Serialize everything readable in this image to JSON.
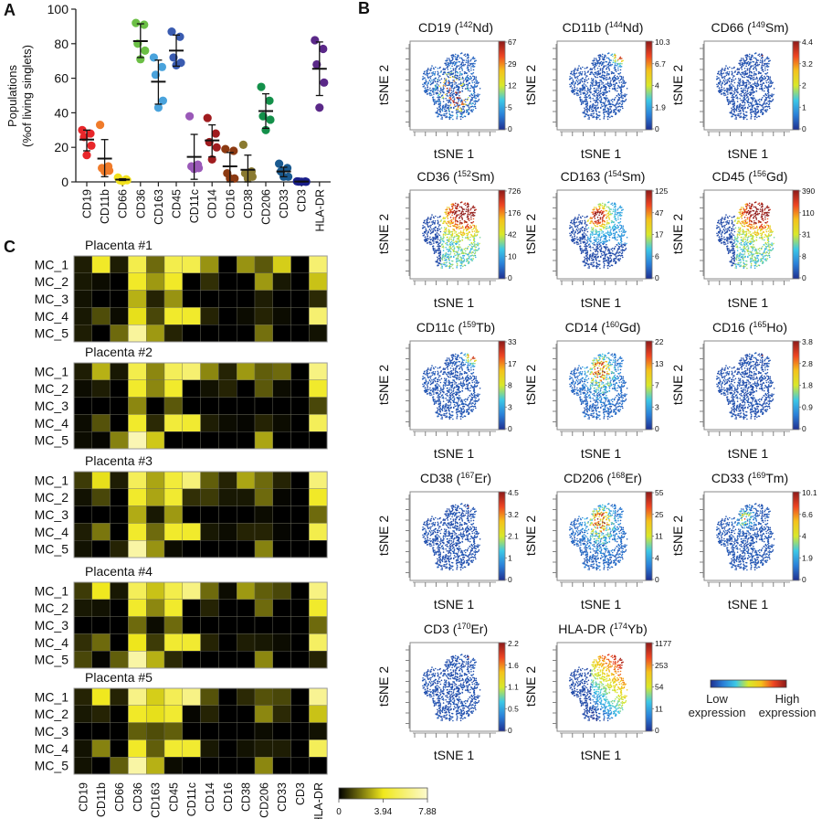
{
  "panel_labels": {
    "a": "A",
    "b": "B",
    "c": "C"
  },
  "chart_data": [
    {
      "panel": "A",
      "type": "scatter",
      "ylabel": [
        "Populations",
        "(%of living singlets)"
      ],
      "ylim": [
        0,
        100
      ],
      "yticks": [
        "0",
        "20",
        "40",
        "60",
        "80",
        "100"
      ],
      "categories": [
        "CD19",
        "CD11b",
        "CD66",
        "CD36",
        "CD163",
        "CD45",
        "CD11c",
        "CD14",
        "CD16",
        "CD38",
        "CD206",
        "CD33",
        "CD3",
        "HLA-DR"
      ],
      "series": [
        {
          "category": "CD19",
          "color": "#e8262a",
          "values": [
            30,
            28,
            26,
            21,
            15.5
          ],
          "mean": 24.5,
          "sd": [
            18,
            30
          ]
        },
        {
          "category": "CD11b",
          "color": "#f07b2a",
          "values": [
            33,
            9,
            8,
            6.5,
            6
          ],
          "mean": 13.5,
          "sd": [
            3,
            24.5
          ]
        },
        {
          "category": "CD66",
          "color": "#f2e11c",
          "values": [
            2.5,
            1.5,
            1,
            1,
            0.5
          ],
          "mean": 1.3,
          "sd": [
            0.8,
            1.8
          ]
        },
        {
          "category": "CD36",
          "color": "#6bbf45",
          "values": [
            92,
            91,
            80,
            76,
            71
          ],
          "mean": 81.5,
          "sd": [
            72,
            91.5
          ]
        },
        {
          "category": "CD163",
          "color": "#4aa3dc",
          "values": [
            72,
            66.5,
            62,
            47,
            43
          ],
          "mean": 58,
          "sd": [
            45,
            70.5
          ]
        },
        {
          "category": "CD45",
          "color": "#3a5bb0",
          "values": [
            87,
            84,
            72,
            69,
            67.5
          ],
          "mean": 76,
          "sd": [
            67,
            85
          ]
        },
        {
          "category": "CD11c",
          "color": "#9a59b8",
          "values": [
            38,
            10,
            9,
            8,
            7.5
          ],
          "mean": 14.5,
          "sd": [
            1.5,
            27.5
          ]
        },
        {
          "category": "CD14",
          "color": "#a01c1f",
          "values": [
            37,
            28,
            23,
            20,
            13
          ],
          "mean": 24,
          "sd": [
            14.5,
            33
          ]
        },
        {
          "category": "CD16",
          "color": "#8c3a12",
          "values": [
            19,
            18,
            5,
            2,
            2
          ],
          "mean": 9,
          "sd": [
            0,
            17
          ]
        },
        {
          "category": "CD38",
          "color": "#8a7a30",
          "values": [
            21.5,
            6,
            5,
            3,
            2
          ],
          "mean": 7,
          "sd": [
            0,
            15.5
          ]
        },
        {
          "category": "CD206",
          "color": "#13904a",
          "values": [
            55,
            47,
            38,
            36,
            30
          ],
          "mean": 41,
          "sd": [
            31,
            51
          ]
        },
        {
          "category": "CD33",
          "color": "#1a5a90",
          "values": [
            10.5,
            8,
            6,
            3,
            3
          ],
          "mean": 6,
          "sd": [
            3,
            8.5
          ]
        },
        {
          "category": "CD3",
          "color": "#1a1f8a",
          "values": [
            0.3,
            0.2,
            0.2,
            0.1,
            0.1
          ],
          "mean": 0.2,
          "sd": [
            0,
            0.4
          ]
        },
        {
          "category": "HLA-DR",
          "color": "#5a2888",
          "values": [
            82,
            77,
            68,
            57.5,
            43
          ],
          "mean": 65.5,
          "sd": [
            50,
            81
          ]
        }
      ]
    },
    {
      "panel": "B",
      "type": "scatter",
      "xlabel": "tSNE 1",
      "ylabel": "tSNE 2",
      "colormap": [
        "#1f2f8f",
        "#2a7fd8",
        "#3cc8e6",
        "#d8e82a",
        "#f5c21b",
        "#ee4422",
        "#8b1a1a"
      ],
      "plots": [
        {
          "marker": "CD19",
          "isotope": "142",
          "element": "Nd",
          "colorbar_ticks": [
            "0",
            "5",
            "12",
            "29",
            "67"
          ]
        },
        {
          "marker": "CD11b",
          "isotope": "144",
          "element": "Nd",
          "colorbar_ticks": [
            "0",
            "1.9",
            "4",
            "6.7",
            "10.3"
          ]
        },
        {
          "marker": "CD66",
          "isotope": "149",
          "element": "Sm",
          "colorbar_ticks": [
            "0",
            "1",
            "2",
            "3.2",
            "4.4"
          ]
        },
        {
          "marker": "CD36",
          "isotope": "152",
          "element": "Sm",
          "colorbar_ticks": [
            "0",
            "10",
            "42",
            "176",
            "726"
          ]
        },
        {
          "marker": "CD163",
          "isotope": "154",
          "element": "Sm",
          "colorbar_ticks": [
            "0",
            "6",
            "17",
            "47",
            "125"
          ]
        },
        {
          "marker": "CD45",
          "isotope": "156",
          "element": "Gd",
          "colorbar_ticks": [
            "0",
            "8",
            "31",
            "110",
            "390"
          ]
        },
        {
          "marker": "CD11c",
          "isotope": "159",
          "element": "Tb",
          "colorbar_ticks": [
            "0",
            "3",
            "8",
            "17",
            "33"
          ]
        },
        {
          "marker": "CD14",
          "isotope": "160",
          "element": "Gd",
          "colorbar_ticks": [
            "0",
            "3",
            "7",
            "13",
            "22"
          ]
        },
        {
          "marker": "CD16",
          "isotope": "165",
          "element": "Ho",
          "colorbar_ticks": [
            "0",
            "0.9",
            "1.8",
            "2.8",
            "3.8"
          ]
        },
        {
          "marker": "CD38",
          "isotope": "167",
          "element": "Er",
          "colorbar_ticks": [
            "0",
            "1",
            "2.1",
            "3.2",
            "4.5"
          ]
        },
        {
          "marker": "CD206",
          "isotope": "168",
          "element": "Er",
          "colorbar_ticks": [
            "0",
            "4",
            "11",
            "25",
            "55"
          ]
        },
        {
          "marker": "CD33",
          "isotope": "169",
          "element": "Tm",
          "colorbar_ticks": [
            "0",
            "1.9",
            "4",
            "6.6",
            "10.1"
          ]
        },
        {
          "marker": "CD3",
          "isotope": "170",
          "element": "Er",
          "colorbar_ticks": [
            "0",
            "0.5",
            "1.1",
            "1.6",
            "2.2"
          ]
        },
        {
          "marker": "HLA-DR",
          "isotope": "174",
          "element": "Yb",
          "colorbar_ticks": [
            "0",
            "11",
            "54",
            "253",
            "1177"
          ]
        }
      ],
      "legend": {
        "low": "Low expression",
        "high": "High expression"
      }
    },
    {
      "panel": "C",
      "type": "heatmap",
      "columns": [
        "CD19",
        "CD11b",
        "CD66",
        "CD36",
        "CD163",
        "CD45",
        "CD11c",
        "CD14",
        "CD16",
        "CD38",
        "CD206",
        "CD33",
        "CD3",
        "HLA-DR"
      ],
      "rows": [
        "MC_1",
        "MC_2",
        "MC_3",
        "MC_4",
        "MC_5"
      ],
      "colors": [
        "#000000",
        "#f0e81c",
        "#fcf9cd"
      ],
      "colorbar": {
        "min": 0,
        "mid": 3.94,
        "max": 7.88,
        "ticks": [
          "0",
          "3.94",
          "7.88"
        ]
      },
      "blocks": [
        {
          "title": "Placenta #1",
          "values": [
            [
              0.5,
              4.2,
              0.5,
              5,
              1.8,
              5,
              5,
              2.5,
              0,
              2.5,
              1.5,
              3.5,
              0,
              5.8
            ],
            [
              0.4,
              0.2,
              0,
              4.2,
              2.6,
              4.2,
              0,
              0.8,
              0,
              0,
              2.6,
              0.4,
              0,
              3.3
            ],
            [
              0.3,
              0,
              0,
              3.0,
              0.6,
              2.5,
              0,
              0,
              0,
              0,
              0.5,
              0,
              0,
              0.7
            ],
            [
              0.4,
              1.3,
              0.2,
              3.8,
              1.2,
              4.3,
              4.3,
              0.6,
              0,
              0.2,
              0.6,
              0.2,
              0,
              5.8
            ],
            [
              0.5,
              0,
              1.8,
              6.8,
              2.6,
              0.6,
              0,
              0,
              0,
              0,
              1.9,
              0,
              0,
              0.3
            ]
          ]
        },
        {
          "title": "Placenta #2",
          "values": [
            [
              0.5,
              3.0,
              0.4,
              5,
              2.3,
              5.3,
              5.8,
              2.3,
              0.6,
              2.6,
              1.6,
              1.8,
              0,
              6.2
            ],
            [
              0.2,
              0.5,
              0,
              4.3,
              2.3,
              4.3,
              0,
              0.3,
              0.6,
              0,
              1.5,
              0.2,
              0,
              4.3
            ],
            [
              0,
              0,
              0,
              2.3,
              0,
              1.5,
              0,
              0,
              0,
              0,
              0,
              0,
              0,
              1.2
            ],
            [
              0.2,
              1.4,
              0,
              4.3,
              0.7,
              4.6,
              4.4,
              0.5,
              0.2,
              0.1,
              0.6,
              0.2,
              0,
              5.3
            ],
            [
              0.2,
              0.1,
              2.2,
              7.3,
              3.4,
              0,
              0,
              0,
              0,
              0,
              2.8,
              0,
              0,
              0
            ]
          ]
        },
        {
          "title": "Placenta #3",
          "values": [
            [
              1.0,
              3.8,
              0.5,
              5.3,
              2.8,
              4.6,
              6,
              1.6,
              0.6,
              2.8,
              1.8,
              0.6,
              0,
              6
            ],
            [
              0.3,
              1.2,
              0,
              4.3,
              2.8,
              4.4,
              0.8,
              1.0,
              0.4,
              0.4,
              1.8,
              0.1,
              0,
              4.2
            ],
            [
              0,
              0,
              0,
              2.9,
              0.4,
              2.6,
              0,
              0,
              0,
              0,
              0.2,
              0,
              0,
              1.8
            ],
            [
              0.5,
              2.0,
              0,
              4.3,
              1.8,
              4.3,
              4.3,
              0.4,
              0.2,
              0.6,
              0.6,
              0.1,
              0,
              5
            ],
            [
              0.3,
              0,
              0.6,
              7.0,
              2.5,
              0.2,
              0,
              0,
              0,
              0,
              2.2,
              0,
              0,
              0
            ]
          ]
        },
        {
          "title": "Placenta #4",
          "values": [
            [
              1.0,
              4.0,
              0.4,
              5.3,
              3.3,
              5,
              6.2,
              1.8,
              0.2,
              2.6,
              1.6,
              1.2,
              0,
              6.2
            ],
            [
              0.4,
              0.3,
              0,
              4.3,
              2.3,
              4.3,
              0,
              0.6,
              0,
              0,
              1.8,
              0,
              0,
              4.3
            ],
            [
              0,
              0,
              0,
              1.8,
              0.2,
              1.8,
              0,
              0,
              0,
              0,
              0,
              0,
              0,
              1.8
            ],
            [
              0.8,
              1.8,
              0,
              3.9,
              1.0,
              4.4,
              4.4,
              0.6,
              0,
              0.5,
              0.4,
              0.2,
              0,
              5.5
            ],
            [
              1.2,
              0.1,
              1.6,
              7.0,
              3.0,
              0.7,
              0,
              0,
              0,
              0,
              2.3,
              0,
              0,
              0.6
            ]
          ]
        },
        {
          "title": "Placenta #5",
          "values": [
            [
              0.6,
              4.0,
              0.6,
              6.3,
              3.5,
              5.2,
              6.3,
              1.4,
              0,
              0.7,
              1.4,
              1.2,
              0,
              6.6
            ],
            [
              0.4,
              0.6,
              0,
              4.2,
              3.8,
              4.4,
              0.1,
              0.6,
              0,
              0,
              2.3,
              0.7,
              0,
              3.3
            ],
            [
              0,
              0,
              0,
              1.6,
              1.3,
              1.6,
              0,
              0,
              0,
              0,
              0.2,
              0,
              0,
              0.3
            ],
            [
              0.3,
              2.2,
              0,
              4.2,
              1.6,
              4.4,
              4.4,
              0.4,
              0,
              0.3,
              0.5,
              0.5,
              0,
              5.3
            ],
            [
              0.3,
              0,
              1.6,
              7.0,
              3.0,
              0.2,
              0,
              0,
              0,
              0,
              2.3,
              0,
              0,
              0
            ]
          ]
        }
      ]
    }
  ]
}
